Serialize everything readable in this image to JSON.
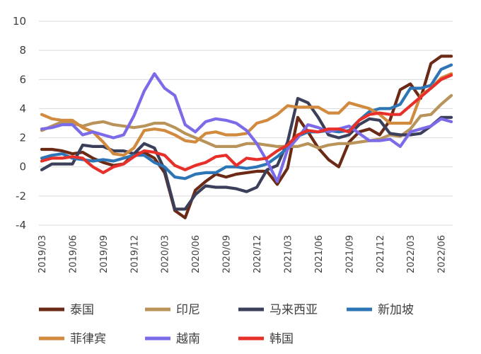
{
  "chart_data": {
    "type": "line",
    "title": "",
    "xlabel": "",
    "ylabel": "",
    "ylim": [
      -4,
      10
    ],
    "yticks": [
      -4,
      -2,
      0,
      2,
      4,
      6,
      8,
      10
    ],
    "grid": true,
    "legend_position": "bottom",
    "x": [
      "2019/03",
      "2019/04",
      "2019/05",
      "2019/06",
      "2019/07",
      "2019/08",
      "2019/09",
      "2019/10",
      "2019/11",
      "2019/12",
      "2020/01",
      "2020/02",
      "2020/03",
      "2020/04",
      "2020/05",
      "2020/06",
      "2020/07",
      "2020/08",
      "2020/09",
      "2020/10",
      "2020/11",
      "2020/12",
      "2021/01",
      "2021/02",
      "2021/03",
      "2021/04",
      "2021/05",
      "2021/06",
      "2021/07",
      "2021/08",
      "2021/09",
      "2021/10",
      "2021/11",
      "2021/12",
      "2022/01",
      "2022/02",
      "2022/03",
      "2022/04",
      "2022/05",
      "2022/06",
      "2022/07"
    ],
    "xtick_labels": [
      "2019/03",
      "2019/06",
      "2019/09",
      "2019/12",
      "2020/03",
      "2020/06",
      "2020/09",
      "2020/12",
      "2021/03",
      "2021/06",
      "2021/09",
      "2021/12",
      "2022/03",
      "2022/06"
    ],
    "series": [
      {
        "name": "泰国",
        "color": "#6b2a15",
        "values": [
          1.2,
          1.2,
          1.1,
          0.9,
          1.0,
          0.6,
          0.3,
          0.1,
          0.2,
          0.9,
          1.0,
          0.6,
          -0.4,
          -3.0,
          -3.5,
          -1.6,
          -1.0,
          -0.5,
          -0.7,
          -0.5,
          -0.4,
          -0.3,
          -0.3,
          -1.2,
          -0.1,
          3.4,
          2.4,
          1.3,
          0.5,
          0.0,
          1.7,
          2.4,
          2.6,
          2.2,
          3.2,
          5.3,
          5.7,
          4.7,
          7.1,
          7.6,
          7.6
        ]
      },
      {
        "name": "印尼",
        "color": "#b8935a",
        "values": [
          2.5,
          2.8,
          3.1,
          3.0,
          2.8,
          3.0,
          3.1,
          2.9,
          2.8,
          2.7,
          2.8,
          3.0,
          3.0,
          2.7,
          2.3,
          2.0,
          1.7,
          1.4,
          1.4,
          1.4,
          1.6,
          1.6,
          1.5,
          1.4,
          1.4,
          1.4,
          1.6,
          1.3,
          1.5,
          1.6,
          1.6,
          1.7,
          1.8,
          1.9,
          2.2,
          2.1,
          2.6,
          3.5,
          3.6,
          4.3,
          4.9
        ]
      },
      {
        "name": "马来西亚",
        "color": "#3b3f5a",
        "values": [
          -0.2,
          0.2,
          0.2,
          0.2,
          1.5,
          1.4,
          1.4,
          1.1,
          1.1,
          0.9,
          1.6,
          1.3,
          -0.2,
          -2.9,
          -2.9,
          -1.9,
          -1.3,
          -1.4,
          -1.4,
          -1.5,
          -1.7,
          -1.4,
          -0.2,
          0.1,
          1.7,
          4.7,
          4.4,
          3.4,
          2.2,
          2.0,
          2.2,
          2.9,
          3.3,
          3.2,
          2.3,
          2.2,
          2.2,
          2.3,
          2.8,
          3.4,
          3.4
        ]
      },
      {
        "name": "新加坡",
        "color": "#2e75b6",
        "values": [
          0.6,
          0.8,
          0.9,
          0.6,
          0.5,
          0.4,
          0.5,
          0.4,
          0.6,
          0.8,
          0.8,
          0.3,
          0.0,
          -0.7,
          -0.8,
          -0.5,
          -0.4,
          -0.4,
          0.0,
          0.0,
          -0.1,
          0.0,
          0.2,
          0.7,
          1.3,
          2.1,
          2.4,
          2.4,
          2.5,
          2.4,
          2.5,
          3.2,
          3.8,
          4.0,
          4.0,
          4.3,
          5.4,
          5.4,
          5.6,
          6.7,
          7.0
        ]
      },
      {
        "name": "菲律宾",
        "color": "#d18a3e",
        "values": [
          3.6,
          3.3,
          3.2,
          3.2,
          2.7,
          2.4,
          1.7,
          0.9,
          0.8,
          1.3,
          2.5,
          2.6,
          2.5,
          2.2,
          1.8,
          1.7,
          2.3,
          2.4,
          2.2,
          2.2,
          2.3,
          3.0,
          3.2,
          3.6,
          4.2,
          4.1,
          4.1,
          4.1,
          3.7,
          3.7,
          4.4,
          4.2,
          4.0,
          3.6,
          3.0,
          3.0,
          3.0,
          4.9,
          5.4,
          6.1,
          6.4
        ]
      },
      {
        "name": "越南",
        "color": "#7b6be8",
        "values": [
          2.6,
          2.7,
          2.9,
          2.9,
          2.2,
          2.4,
          2.2,
          2.0,
          2.2,
          3.5,
          5.2,
          6.4,
          5.4,
          4.9,
          2.9,
          2.4,
          3.1,
          3.3,
          3.2,
          3.0,
          2.5,
          1.6,
          0.4,
          -1.0,
          1.2,
          2.0,
          2.9,
          2.7,
          2.4,
          2.6,
          2.8,
          2.3,
          1.8,
          1.8,
          1.9,
          1.4,
          2.4,
          2.6,
          2.8,
          3.3,
          3.1
        ]
      },
      {
        "name": "韩国",
        "color": "#e8302a",
        "values": [
          0.4,
          0.6,
          0.6,
          0.7,
          0.6,
          0.0,
          -0.4,
          0.0,
          0.2,
          0.7,
          1.1,
          1.0,
          0.8,
          0.1,
          -0.2,
          0.1,
          0.3,
          0.7,
          0.8,
          0.1,
          0.6,
          0.5,
          0.6,
          1.1,
          1.5,
          2.2,
          2.5,
          2.4,
          2.6,
          2.6,
          2.4,
          3.2,
          3.6,
          3.7,
          3.6,
          3.6,
          4.2,
          4.8,
          5.4,
          6.0,
          6.3
        ]
      }
    ]
  }
}
